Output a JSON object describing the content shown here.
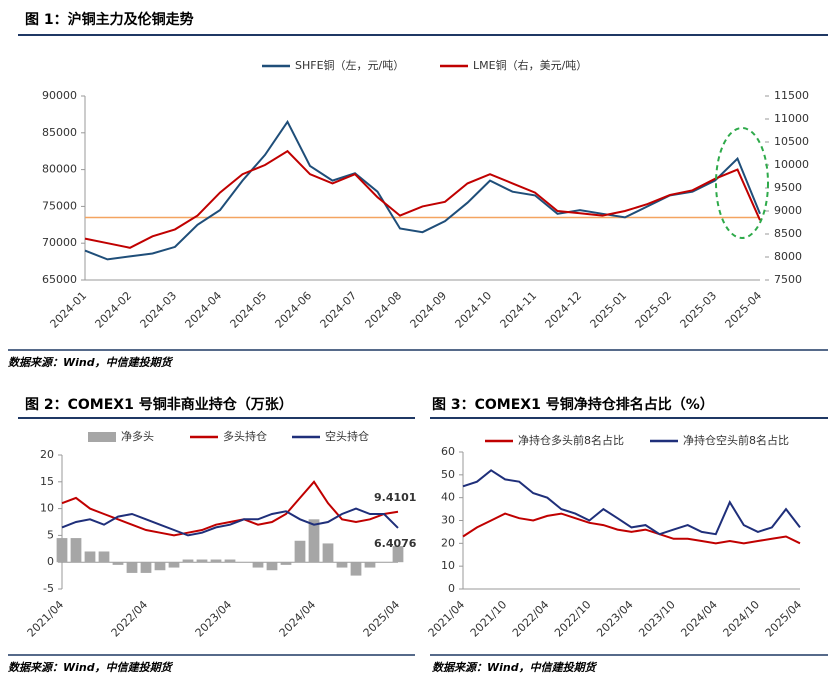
{
  "chart_data": [
    {
      "type": "line",
      "title": "图 1：沪铜主力及伦铜走势",
      "source": "数据来源：Wind，中信建投期货",
      "grid": false,
      "xticks": [
        "2024-01",
        "2024-02",
        "2024-03",
        "2024-04",
        "2024-05",
        "2024-06",
        "2024-07",
        "2024-08",
        "2024-09",
        "2024-10",
        "2024-11",
        "2024-12",
        "2025-01",
        "2025-02",
        "2025-03",
        "2025-04"
      ],
      "ylim": [
        65000,
        90000
      ],
      "yticks": [
        65000,
        70000,
        75000,
        80000,
        85000,
        90000
      ],
      "y2lim": [
        7500,
        11500
      ],
      "y2ticks": [
        7500,
        8000,
        8500,
        9000,
        9500,
        10000,
        10500,
        11000,
        11500
      ],
      "reference_line": {
        "value": 73500,
        "color": "#f4a460"
      },
      "series": [
        {
          "name": "SHFE铜（左，元/吨）",
          "color": "#1f4e79",
          "values": [
            69000,
            67800,
            68200,
            68600,
            69500,
            72500,
            74500,
            78500,
            82000,
            86500,
            80500,
            78500,
            79500,
            77000,
            72000,
            71500,
            73000,
            75500,
            78500,
            77000,
            76500,
            74000,
            74500,
            74000,
            73500,
            75000,
            76500,
            77000,
            78500,
            81500,
            74000
          ]
        },
        {
          "name": "LME铜（右，美元/吨）",
          "color": "#c00000",
          "axis": "y2",
          "values": [
            8400,
            8300,
            8200,
            8450,
            8600,
            8900,
            9400,
            9800,
            10000,
            10300,
            9800,
            9600,
            9800,
            9300,
            8900,
            9100,
            9200,
            9600,
            9800,
            9600,
            9400,
            9000,
            8950,
            8900,
            9000,
            9150,
            9350,
            9450,
            9700,
            9900,
            8800
          ]
        }
      ]
    },
    {
      "type": "combo",
      "title": "图 2：COMEX1 号铜非商业持仓（万张）",
      "source": "数据来源：Wind，中信建投期货",
      "grid": false,
      "xticks": [
        "2021/04",
        "2022/04",
        "2023/04",
        "2024/04",
        "2025/04"
      ],
      "ylim": [
        -5,
        20
      ],
      "yticks": [
        -5,
        0,
        5,
        10,
        15,
        20
      ],
      "series": [
        {
          "name": "净多头",
          "color": "#a6a6a6",
          "kind": "bar",
          "values": [
            4.5,
            4.5,
            2,
            2,
            -0.5,
            -2,
            -2,
            -1.5,
            -1,
            0.5,
            0.5,
            0.5,
            0.5,
            0,
            -1,
            -1.5,
            -0.5,
            4,
            8,
            3.5,
            -1,
            -2.5,
            -1,
            0,
            3
          ]
        },
        {
          "name": "多头持仓",
          "color": "#c00000",
          "end_label": true,
          "values": [
            11,
            12,
            10,
            9,
            8,
            7,
            6,
            5.5,
            5,
            5.5,
            6,
            7,
            7.5,
            8,
            7,
            7.5,
            9,
            12,
            15,
            11,
            8,
            7.5,
            8,
            9,
            9.4101
          ]
        },
        {
          "name": "空头持仓",
          "color": "#1f2f7a",
          "end_label": true,
          "values": [
            6.5,
            7.5,
            8,
            7,
            8.5,
            9,
            8,
            7,
            6,
            5,
            5.5,
            6.5,
            7,
            8,
            8,
            9,
            9.5,
            8,
            7,
            7.5,
            9,
            10,
            9,
            9,
            6.4076
          ]
        }
      ]
    },
    {
      "type": "line",
      "title": "图 3：COMEX1 号铜净持仓排名占比（%）",
      "source": "数据来源：Wind，中信建投期货",
      "grid": false,
      "xticks": [
        "2021/04",
        "2021/10",
        "2022/04",
        "2022/10",
        "2023/04",
        "2023/10",
        "2024/04",
        "2024/10",
        "2025/04"
      ],
      "ylim": [
        0,
        60
      ],
      "yticks": [
        0,
        10,
        20,
        30,
        40,
        50,
        60
      ],
      "series": [
        {
          "name": "净持仓多头前8名占比",
          "color": "#c00000",
          "values": [
            23,
            27,
            30,
            33,
            31,
            30,
            32,
            33,
            31,
            29,
            28,
            26,
            25,
            26,
            24,
            22,
            22,
            21,
            20,
            21,
            20,
            21,
            22,
            23,
            20
          ]
        },
        {
          "name": "净持仓空头前8名占比",
          "color": "#1f2f7a",
          "values": [
            45,
            47,
            52,
            48,
            47,
            42,
            40,
            35,
            33,
            30,
            35,
            31,
            27,
            28,
            24,
            26,
            28,
            25,
            24,
            38,
            28,
            25,
            27,
            35,
            27
          ]
        }
      ]
    }
  ]
}
